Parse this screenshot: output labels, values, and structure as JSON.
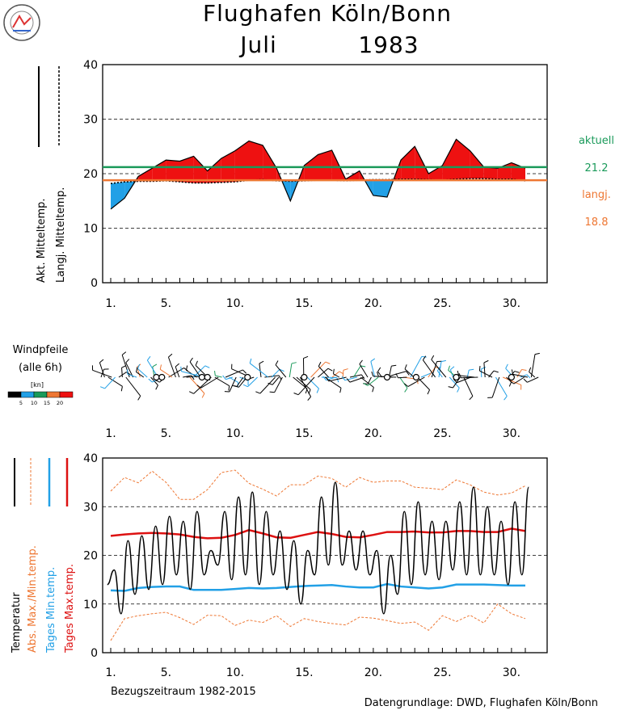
{
  "header": {
    "title_line1": "Flughafen Köln/Bonn",
    "month": "Juli",
    "year": "1983"
  },
  "footer": {
    "reference_period": "Bezugszeitraum 1982-2015",
    "source": "Datengrundlage: DWD, Flughafen Köln/Bonn"
  },
  "chart_data": [
    {
      "type": "area",
      "id": "mean-temperature",
      "ylim": [
        0,
        40
      ],
      "yticks": [
        "0",
        "10",
        "20",
        "30",
        "40"
      ],
      "xticks": [
        "1.",
        "5.",
        "10.",
        "15.",
        "20.",
        "25.",
        "30."
      ],
      "x": [
        1,
        2,
        3,
        4,
        5,
        6,
        7,
        8,
        9,
        10,
        11,
        12,
        13,
        14,
        15,
        16,
        17,
        18,
        19,
        20,
        21,
        22,
        23,
        24,
        25,
        26,
        27,
        28,
        29,
        30,
        31
      ],
      "series": [
        {
          "name": "Akt. Mitteltemp.",
          "values": [
            13.5,
            15.5,
            19.5,
            21,
            22.5,
            22.3,
            23.2,
            20.5,
            22.8,
            24.2,
            26,
            25.2,
            21,
            15,
            21.5,
            23.5,
            24.3,
            19,
            20.5,
            16,
            15.7,
            22.5,
            25,
            20,
            21.5,
            26.3,
            24.2,
            21.2,
            21,
            22,
            21
          ]
        },
        {
          "name": "Langj. Mitteltemp.",
          "values": [
            18.2,
            18.5,
            18.6,
            18.6,
            18.7,
            18.5,
            18.3,
            18.3,
            18.4,
            18.5,
            18.8,
            18.9,
            18.7,
            18.6,
            18.7,
            18.8,
            18.8,
            18.7,
            18.8,
            18.9,
            18.9,
            19,
            19,
            18.9,
            18.8,
            19,
            19.1,
            19.1,
            19,
            19,
            18.7
          ]
        }
      ],
      "reference_lines": {
        "aktuell_label": "aktuell",
        "aktuell_value": "21.2",
        "langj_label": "langj.",
        "langj_value": "18.8"
      },
      "legend_labels": [
        "Akt. Mitteltemp.",
        "Langj. Mitteltemp."
      ],
      "colors": {
        "above": "#ee1111",
        "below": "#22a0e6",
        "aktuell": "#1a9a5a",
        "langj": "#ee7733"
      }
    },
    {
      "type": "line",
      "id": "wind",
      "title": "Windpfeile",
      "subtitle": "(alle 6h)",
      "scale_unit": "[kn]",
      "scale_ticks": [
        "5",
        "10",
        "15",
        "20"
      ],
      "scale_colors": [
        "#000000",
        "#22a0e6",
        "#1a9a5a",
        "#ee7733",
        "#ee1111"
      ],
      "xticks": [
        "1.",
        "5.",
        "10.",
        "15.",
        "20.",
        "25.",
        "30."
      ]
    },
    {
      "type": "line",
      "id": "daily-temperature",
      "ylim": [
        0,
        40
      ],
      "yticks": [
        "0",
        "10",
        "20",
        "30",
        "40"
      ],
      "xticks": [
        "1.",
        "5.",
        "10.",
        "15.",
        "20.",
        "25.",
        "30."
      ],
      "x": [
        1,
        2,
        3,
        4,
        5,
        6,
        7,
        8,
        9,
        10,
        11,
        12,
        13,
        14,
        15,
        16,
        17,
        18,
        19,
        20,
        21,
        22,
        23,
        24,
        25,
        26,
        27,
        28,
        29,
        30,
        31
      ],
      "series": [
        {
          "name": "Temperatur",
          "min": [
            14,
            8,
            12,
            13,
            14,
            16,
            13,
            16,
            18,
            15,
            16,
            14,
            16,
            13,
            10,
            16,
            18,
            18,
            17,
            16,
            8,
            12,
            14,
            16,
            15,
            17,
            16,
            16,
            16,
            14,
            16
          ],
          "max": [
            17,
            23,
            24,
            26,
            28,
            27,
            29,
            21,
            29,
            32,
            33,
            29,
            25,
            23,
            21,
            32,
            35,
            25,
            25,
            21,
            20,
            29,
            31,
            27,
            27,
            31,
            34,
            30,
            27,
            31,
            34
          ]
        },
        {
          "name": "Tages Max.temp.",
          "values": [
            24,
            24.3,
            24.5,
            24.6,
            24.5,
            24.3,
            23.8,
            23.5,
            23.6,
            24.2,
            25.2,
            24.5,
            23.7,
            23.6,
            24.2,
            24.8,
            24.4,
            23.8,
            23.7,
            24.2,
            24.8,
            24.8,
            24.9,
            24.7,
            24.7,
            25,
            25,
            24.8,
            24.8,
            25.5,
            25
          ]
        },
        {
          "name": "Tages Min.temp.",
          "values": [
            12.8,
            12.7,
            13.3,
            13.5,
            13.6,
            13.6,
            12.9,
            12.9,
            12.9,
            13.1,
            13.3,
            13.2,
            13.3,
            13.5,
            13.7,
            13.8,
            13.9,
            13.6,
            13.4,
            13.4,
            14.1,
            13.6,
            13.4,
            13.2,
            13.4,
            14,
            14,
            14,
            13.9,
            13.8,
            13.8
          ]
        },
        {
          "name": "Abs. Max.temp.",
          "values": [
            33.2,
            36,
            34.9,
            37.3,
            35,
            31.5,
            31.5,
            33.5,
            37,
            37.5,
            34.8,
            33.6,
            32.2,
            34.5,
            34.5,
            36.3,
            35.8,
            34,
            36,
            35,
            35.3,
            35.3,
            34,
            33.8,
            33.5,
            35.5,
            34.5,
            33,
            32.4,
            32.8,
            34.3
          ]
        },
        {
          "name": "Abs. Min.temp.",
          "values": [
            2.5,
            7,
            7.6,
            8,
            8.3,
            7.2,
            5.8,
            7.7,
            7.6,
            5.6,
            6.7,
            6.2,
            7.6,
            5.4,
            7,
            6.4,
            6,
            5.7,
            7.3,
            7.1,
            6.6,
            6,
            6.3,
            4.6,
            7.6,
            6.4,
            7.7,
            6.1,
            10,
            8,
            7
          ]
        }
      ],
      "legend_labels": [
        "Temperatur",
        "Abs. Max./Min.temp.",
        "Tages Min.temp.",
        "Tages Max.temp."
      ],
      "colors": {
        "temp": "#000000",
        "abs": "#ee7733",
        "min": "#22a0e6",
        "max": "#dd1111"
      }
    }
  ]
}
